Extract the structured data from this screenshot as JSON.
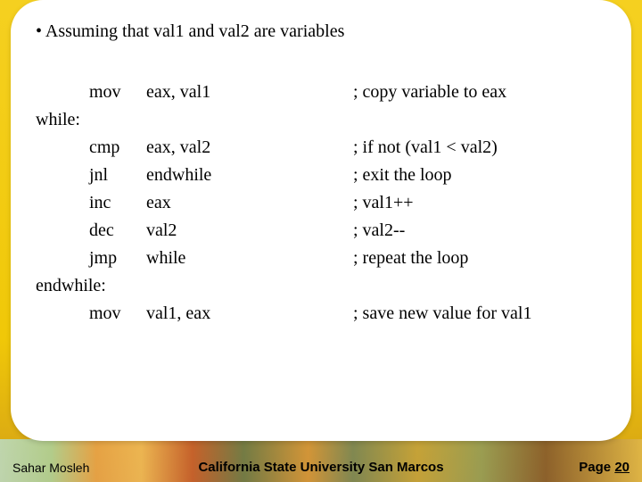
{
  "heading": "• Assuming that val1 and val2 are variables",
  "code": {
    "rows": [
      {
        "indent": true,
        "mnem": "mov",
        "oper": "eax, val1",
        "comment": "; copy variable to eax"
      },
      {
        "label": "while:"
      },
      {
        "indent": true,
        "mnem": "cmp",
        "oper": "eax, val2",
        "comment": "; if not (val1 < val2)"
      },
      {
        "indent": true,
        "mnem": "jnl",
        "oper": "endwhile",
        "comment": "; exit the loop"
      },
      {
        "indent": true,
        "mnem": "inc",
        "oper": "eax",
        "comment": "; val1++"
      },
      {
        "indent": true,
        "mnem": "dec",
        "oper": "val2",
        "comment": "; val2--"
      },
      {
        "indent": true,
        "mnem": "jmp",
        "oper": "while",
        "comment": "; repeat the loop"
      },
      {
        "label": "endwhile:"
      },
      {
        "indent": true,
        "mnem": "mov",
        "oper": "val1, eax",
        "comment": "; save new value for val1"
      }
    ]
  },
  "footer": {
    "left": "Sahar Mosleh",
    "center": "California State University San Marcos",
    "right_prefix": "Page ",
    "right_num": "20"
  }
}
